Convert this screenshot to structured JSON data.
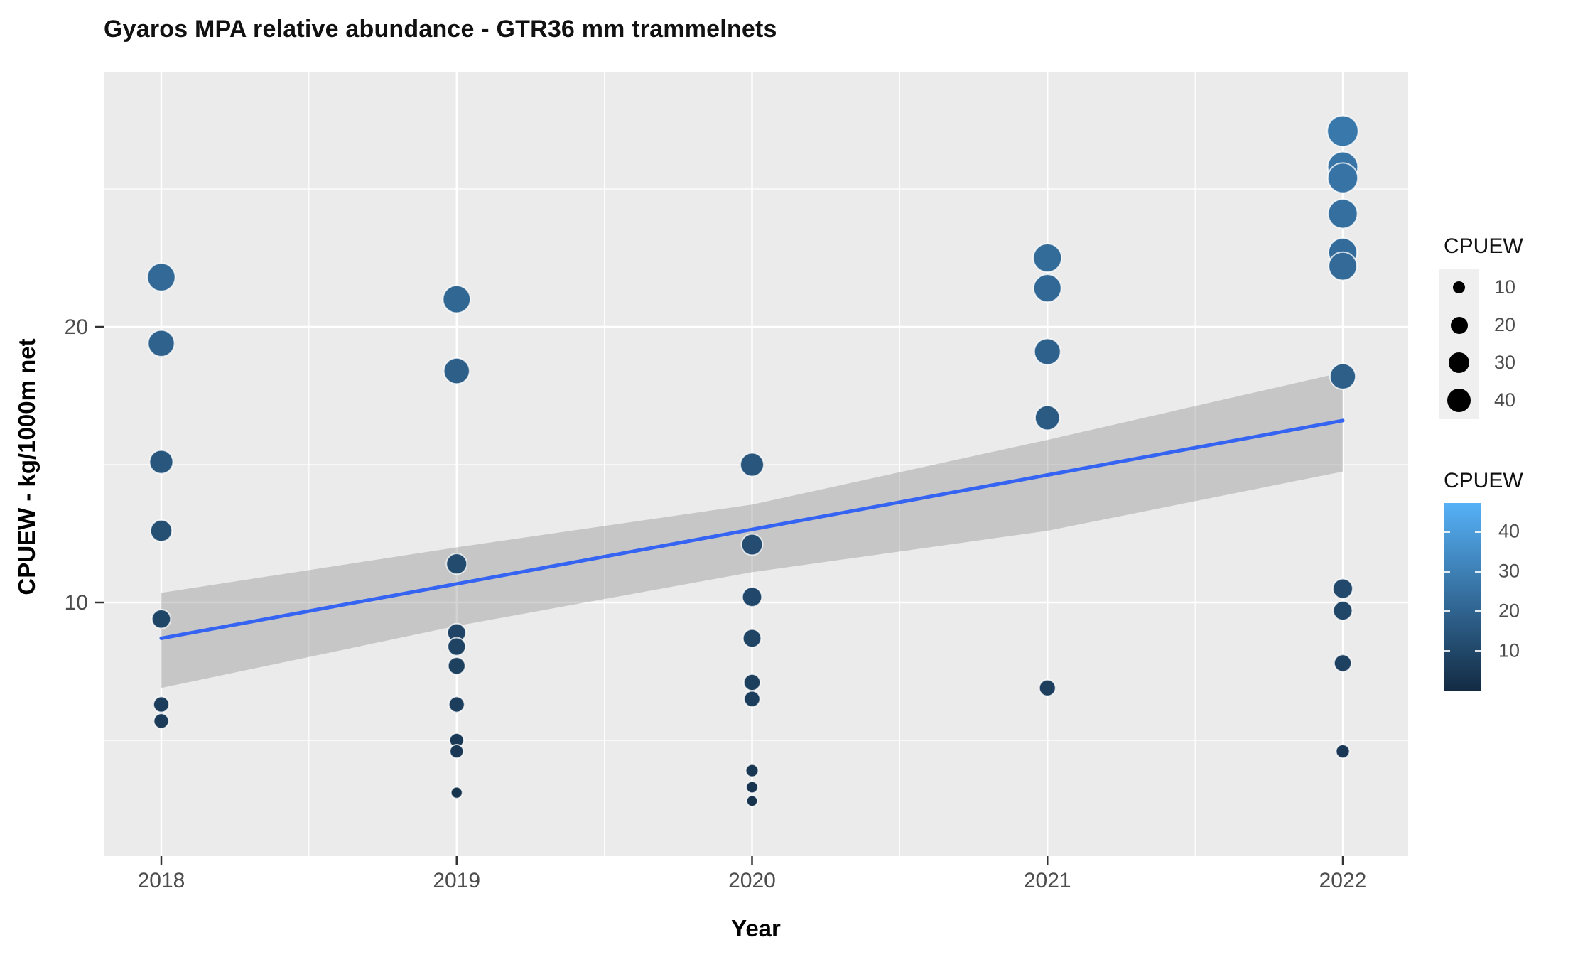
{
  "figure": {
    "title": "Gyaros MPA relative abundance - GTR36 mm trammelnets"
  },
  "chart_data": {
    "type": "scatter",
    "title": "Gyaros MPA relative abundance - GTR36 mm trammelnets",
    "xlabel": "Year",
    "ylabel": "CPUEW - kg/1000m net",
    "x_ticks": [
      2018,
      2019,
      2020,
      2021,
      2022
    ],
    "x_minor": [
      2018.5,
      2019.5,
      2020.5,
      2021.5
    ],
    "y_ticks": [
      10,
      20
    ],
    "y_minor": [
      5,
      15,
      25
    ],
    "xlim": [
      2017.8,
      2022.22
    ],
    "ylim": [
      0.8,
      29.2
    ],
    "grid": true,
    "legend_position": "right",
    "point_bubble_note": "point size and color both encode CPUEW value",
    "series": [
      {
        "year": 2018,
        "values": [
          21.8,
          19.4,
          15.1,
          12.6,
          9.4,
          6.3,
          5.7
        ]
      },
      {
        "year": 2019,
        "values": [
          21.0,
          18.4,
          11.4,
          8.9,
          8.4,
          7.7,
          6.3,
          5.0,
          4.6,
          3.1
        ]
      },
      {
        "year": 2020,
        "values": [
          15.0,
          12.1,
          10.2,
          8.7,
          7.1,
          6.5,
          3.9,
          3.3,
          2.8
        ]
      },
      {
        "year": 2021,
        "values": [
          22.5,
          21.4,
          19.1,
          16.7,
          6.9
        ]
      },
      {
        "year": 2022,
        "values": [
          27.1,
          25.8,
          25.4,
          24.1,
          22.7,
          22.2,
          18.2,
          10.5,
          9.7,
          7.8,
          4.6
        ]
      }
    ],
    "trend": {
      "x": [
        2018,
        2022
      ],
      "y": [
        8.7,
        16.6
      ],
      "color": "#3564F2"
    },
    "ribbon": {
      "x": [
        2018,
        2019,
        2020,
        2021,
        2022
      ],
      "upper": [
        10.35,
        12.0,
        13.55,
        15.9,
        18.35
      ],
      "lower": [
        6.9,
        9.15,
        11.1,
        12.6,
        14.75
      ],
      "color": "rgba(125,125,125,0.34)"
    },
    "color_scale": {
      "low": "#132B43",
      "high": "#56B1F7",
      "domain": [
        0,
        47.2
      ]
    },
    "legend_size": {
      "title": "CPUEW",
      "breaks": [
        10,
        20,
        30,
        40
      ]
    },
    "legend_color": {
      "title": "CPUEW",
      "breaks": [
        10,
        20,
        30,
        40
      ]
    },
    "panel_bg": "#EBEBEB",
    "grid_color": "#FFFFFF",
    "tick_label_color": "#4D4D4D",
    "point_stroke": "rgba(255,255,255,0.75)"
  }
}
